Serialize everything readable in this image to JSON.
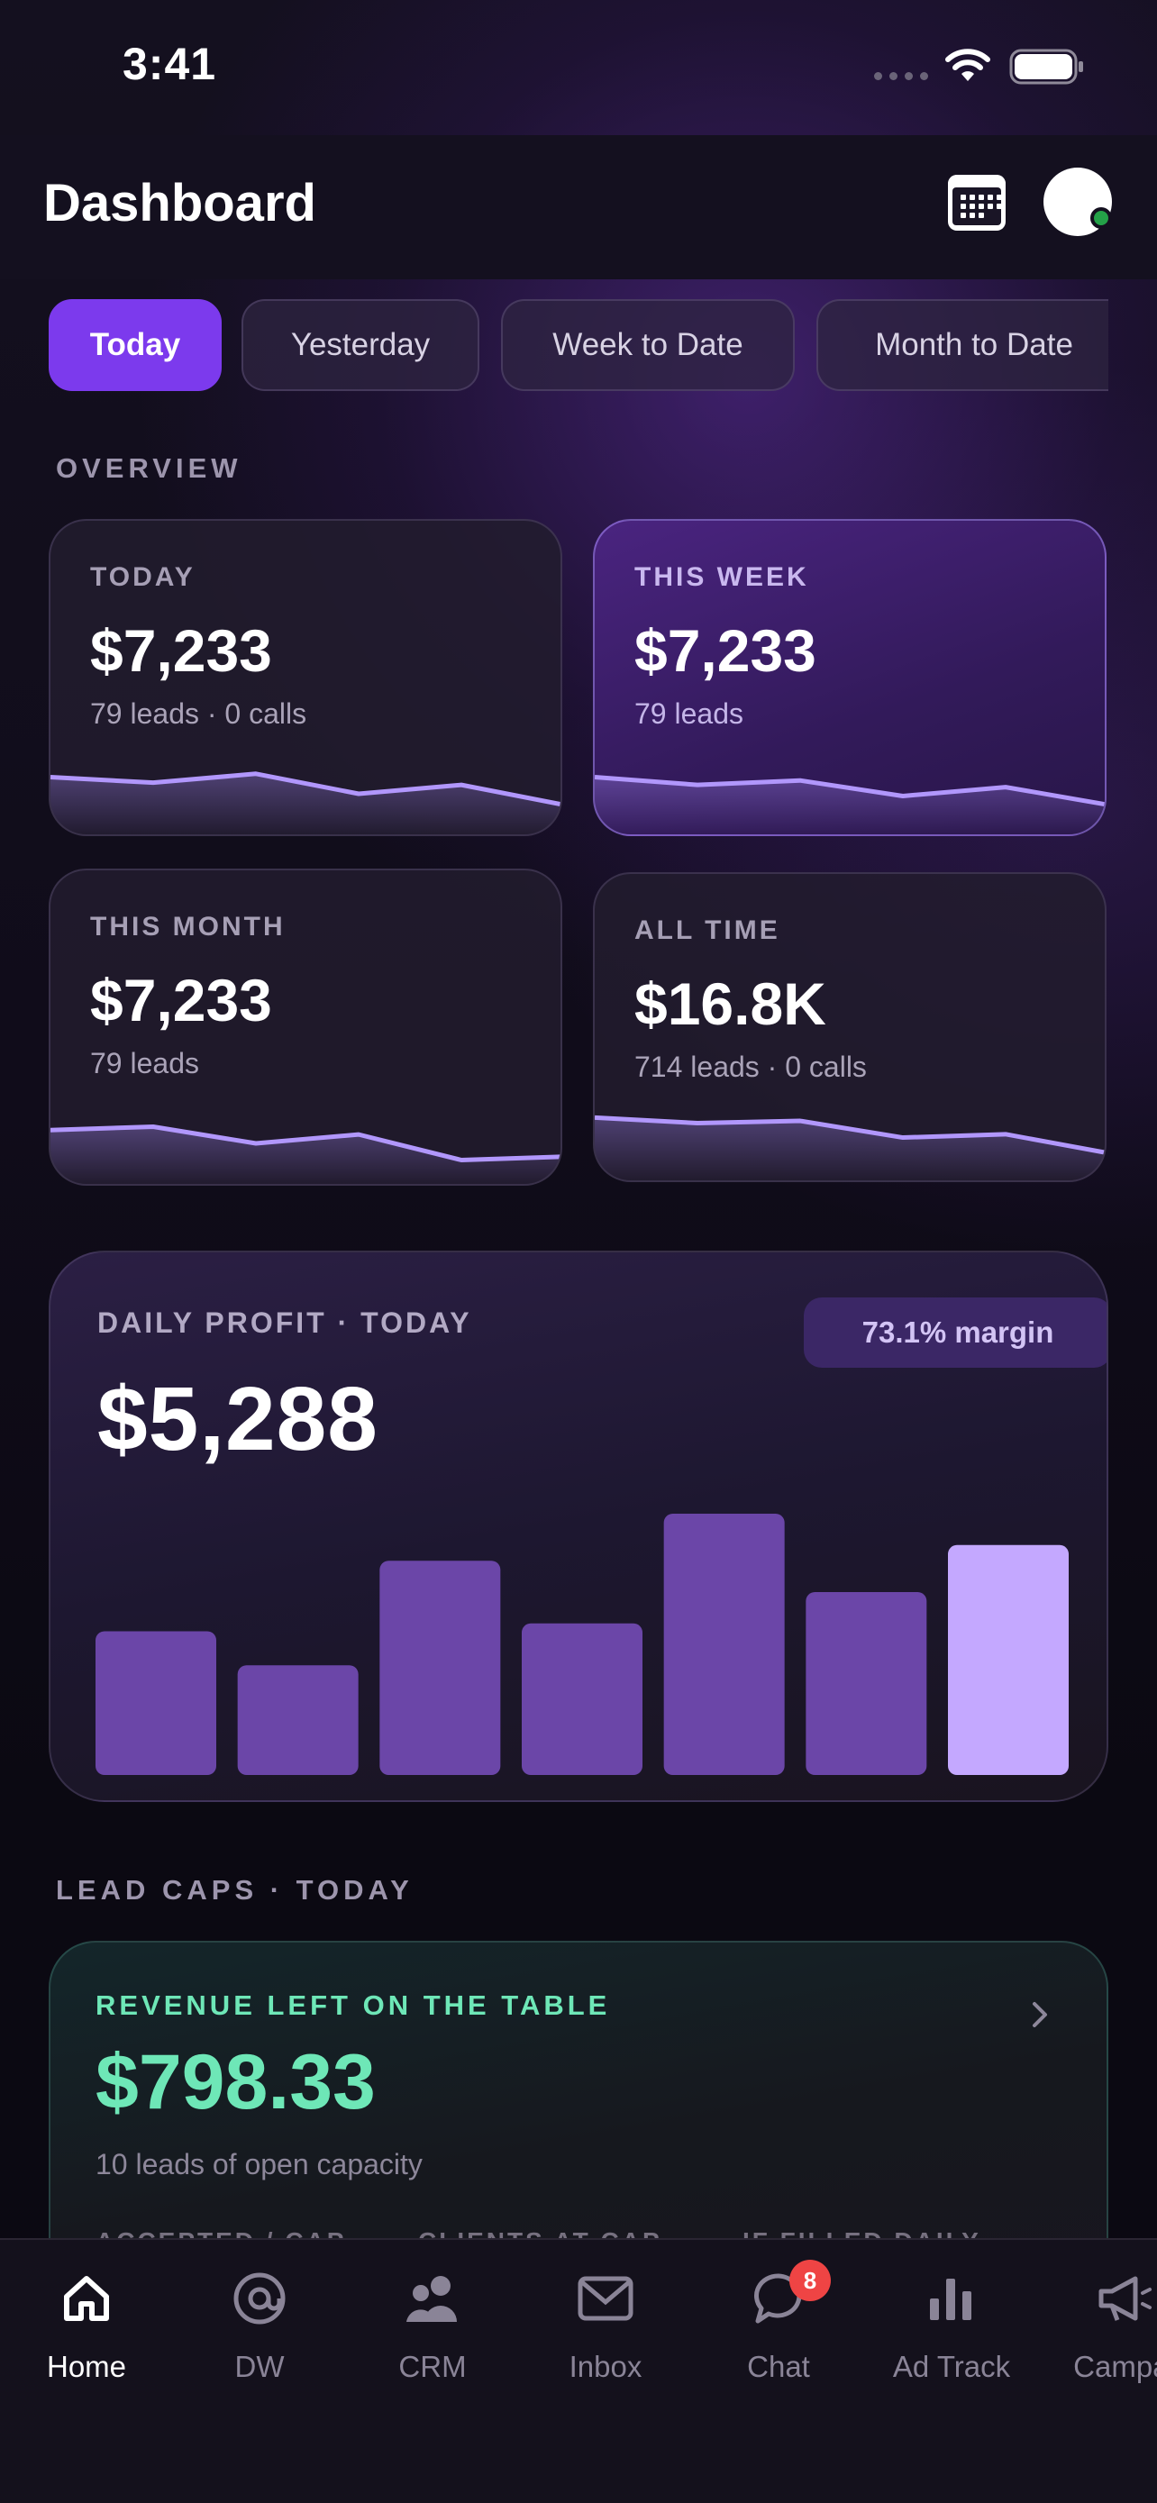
{
  "status_bar": {
    "time": "3:41"
  },
  "header": {
    "title": "Dashboard"
  },
  "filters": [
    {
      "label": "Today",
      "active": true
    },
    {
      "label": "Yesterday",
      "active": false
    },
    {
      "label": "Week to Date",
      "active": false
    },
    {
      "label": "Month to Date",
      "active": false
    }
  ],
  "overview": {
    "section_label": "OVERVIEW",
    "cards": [
      {
        "label": "TODAY",
        "value": "$7,233",
        "sub": "79 leads · 0 calls",
        "highlight": false,
        "trend": [
          0.45,
          0.4,
          0.48,
          0.3,
          0.38,
          0.2
        ]
      },
      {
        "label": "THIS WEEK",
        "value": "$7,233",
        "sub": "79 leads",
        "highlight": true,
        "trend": [
          0.45,
          0.38,
          0.42,
          0.28,
          0.36,
          0.2
        ]
      },
      {
        "label": "THIS MONTH",
        "value": "$7,233",
        "sub": "79 leads",
        "highlight": false,
        "trend": [
          0.42,
          0.45,
          0.3,
          0.38,
          0.15,
          0.18
        ]
      },
      {
        "label": "ALL TIME",
        "value": "$16.8K",
        "sub": "714 leads · 0 calls",
        "highlight": false,
        "trend": [
          0.5,
          0.45,
          0.47,
          0.32,
          0.35,
          0.18
        ]
      }
    ]
  },
  "profit": {
    "label": "DAILY PROFIT · TODAY",
    "value": "$5,288",
    "margin_badge": "73.1% margin",
    "chart_data": {
      "type": "bar",
      "values": [
        0.55,
        0.42,
        0.82,
        0.58,
        1.0,
        0.7,
        0.88
      ],
      "highlight_index": 6,
      "bar_color": "#6b46a8",
      "highlight_color": "#c4a8ff"
    }
  },
  "lead_caps": {
    "section_label": "LEAD CAPS · TODAY",
    "label": "REVENUE LEFT ON THE TABLE",
    "value": "$798.33",
    "sub": "10 leads of open capacity",
    "columns": [
      "ACCEPTED / CAP",
      "CLIENTS AT CAP",
      "IF FILLED DAILY"
    ]
  },
  "tab_bar": {
    "items": [
      {
        "label": "Home",
        "icon": "home-icon",
        "active": true
      },
      {
        "label": "DW",
        "icon": "at-sign-icon",
        "active": false
      },
      {
        "label": "CRM",
        "icon": "users-icon",
        "active": false
      },
      {
        "label": "Inbox",
        "icon": "mail-icon",
        "active": false
      },
      {
        "label": "Chat",
        "icon": "chat-bubble-icon",
        "active": false,
        "badge": "8"
      },
      {
        "label": "Ad Track",
        "icon": "bar-chart-icon",
        "active": false
      },
      {
        "label": "Campai",
        "icon": "megaphone-icon",
        "active": false
      }
    ]
  },
  "colors": {
    "accent": "#7c3aed",
    "accent_light": "#c4a8ff",
    "green": "#6ee7b7",
    "badge_red": "#ef4444",
    "online_dot": "#24a148"
  }
}
